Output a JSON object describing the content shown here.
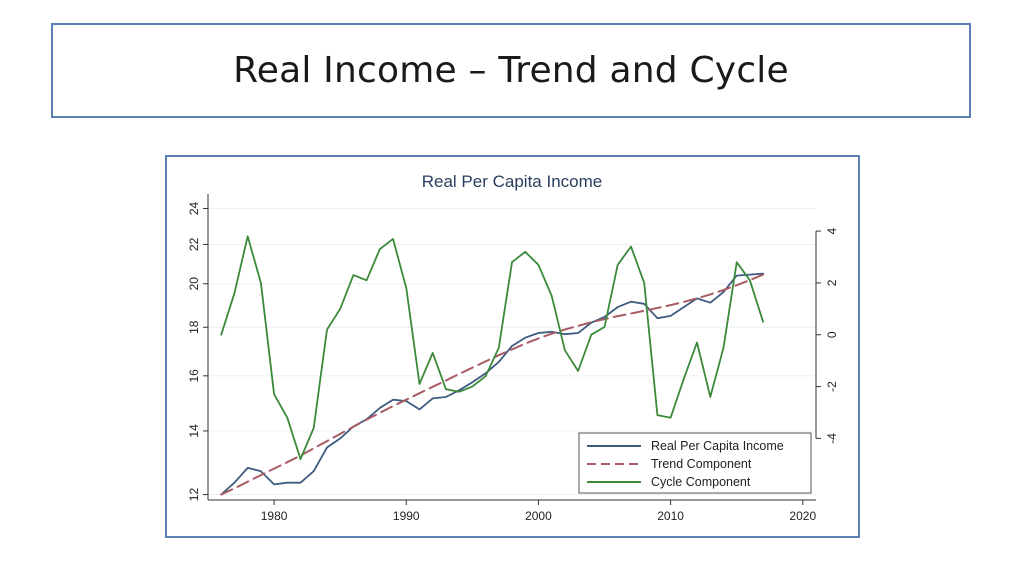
{
  "slide": {
    "title": "Real Income – Trend and Cycle"
  },
  "chart_data": {
    "type": "line",
    "title": "Real Per Capita Income",
    "xlabel": "",
    "ylabel_left": "",
    "ylabel_right": "",
    "xlim": [
      1975,
      2021
    ],
    "x_ticks": [
      1980,
      1990,
      2000,
      2010,
      2020
    ],
    "y_left_scale": "log",
    "y_left_ticks": [
      12,
      14,
      16,
      18,
      20,
      22,
      24
    ],
    "y_left_range": [
      11.9,
      24.5
    ],
    "y_right_ticks": [
      -4,
      -2,
      0,
      2,
      4
    ],
    "y_right_range": [
      -6.3,
      5.2
    ],
    "grid": true,
    "legend_position": "bottom-right",
    "x": [
      1976,
      1977,
      1978,
      1979,
      1980,
      1981,
      1982,
      1983,
      1984,
      1985,
      1986,
      1987,
      1988,
      1989,
      1990,
      1991,
      1992,
      1993,
      1994,
      1995,
      1996,
      1997,
      1998,
      1999,
      2000,
      2001,
      2002,
      2003,
      2004,
      2005,
      2006,
      2007,
      2008,
      2009,
      2010,
      2011,
      2012,
      2013,
      2014,
      2015,
      2016,
      2017
    ],
    "series": [
      {
        "name": "Real Per Capita Income",
        "axis": "left",
        "color": "#3e5b80",
        "style": "solid",
        "values": [
          12.0,
          12.35,
          12.8,
          12.7,
          12.3,
          12.35,
          12.35,
          12.7,
          13.45,
          13.75,
          14.15,
          14.4,
          14.8,
          15.1,
          15.05,
          14.75,
          15.15,
          15.2,
          15.45,
          15.75,
          16.1,
          16.55,
          17.2,
          17.55,
          17.75,
          17.8,
          17.7,
          17.75,
          18.2,
          18.45,
          18.9,
          19.15,
          19.05,
          18.4,
          18.5,
          18.9,
          19.3,
          19.1,
          19.6,
          20.4,
          20.45,
          20.5
        ]
      },
      {
        "name": "Trend Component",
        "axis": "left",
        "color": "#a85c63",
        "style": "dashed",
        "values": [
          12.0,
          12.18,
          12.38,
          12.58,
          12.78,
          12.98,
          13.19,
          13.42,
          13.66,
          13.9,
          14.14,
          14.39,
          14.63,
          14.87,
          15.1,
          15.34,
          15.58,
          15.82,
          16.07,
          16.32,
          16.57,
          16.82,
          17.06,
          17.3,
          17.52,
          17.72,
          17.9,
          18.06,
          18.22,
          18.36,
          18.49,
          18.61,
          18.73,
          18.86,
          18.99,
          19.14,
          19.3,
          19.49,
          19.7,
          19.93,
          20.18,
          20.45
        ]
      },
      {
        "name": "Cycle Component",
        "axis": "right",
        "color": "#3a8a3a",
        "style": "solid",
        "values": [
          0.0,
          1.6,
          3.8,
          2.0,
          -2.3,
          -3.2,
          -4.8,
          -3.6,
          0.2,
          1.0,
          2.3,
          2.1,
          3.3,
          3.7,
          1.8,
          -1.9,
          -0.7,
          -2.1,
          -2.2,
          -2.0,
          -1.6,
          -0.5,
          2.8,
          3.2,
          2.7,
          1.5,
          -0.6,
          -1.4,
          0.0,
          0.3,
          2.7,
          3.4,
          2.0,
          -3.1,
          -3.2,
          -1.7,
          -0.3,
          -2.4,
          -0.5,
          2.8,
          2.1,
          0.5
        ]
      }
    ]
  }
}
